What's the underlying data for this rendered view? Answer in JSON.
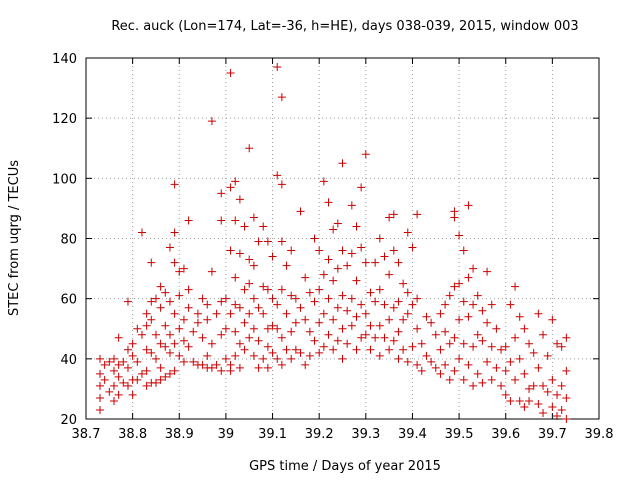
{
  "chart_data": {
    "type": "scatter",
    "title": "Rec. auck (Lon=174, Lat=-36, h=HE), days 038-039, 2015, window 003",
    "xlabel": "GPS time / Days of year 2015",
    "ylabel": "STEC from uqrg / TECUs",
    "xlim": [
      38.7,
      39.8
    ],
    "ylim": [
      20,
      140
    ],
    "xticks": [
      "38.7",
      "38.8",
      "38.9",
      "39",
      "39.1",
      "39.2",
      "39.3",
      "39.4",
      "39.5",
      "39.6",
      "39.7",
      "39.8"
    ],
    "yticks": [
      "20",
      "40",
      "60",
      "80",
      "100",
      "120",
      "140"
    ],
    "grid": true,
    "marker": "+",
    "color": "#cc0000",
    "points": [
      [
        38.73,
        40
      ],
      [
        38.73,
        35
      ],
      [
        38.73,
        31
      ],
      [
        38.73,
        27
      ],
      [
        38.73,
        23
      ],
      [
        38.74,
        38
      ],
      [
        38.74,
        33
      ],
      [
        38.75,
        39
      ],
      [
        38.75,
        29
      ],
      [
        38.76,
        40
      ],
      [
        38.76,
        36
      ],
      [
        38.76,
        31
      ],
      [
        38.76,
        26
      ],
      [
        38.77,
        47
      ],
      [
        38.77,
        38
      ],
      [
        38.77,
        34
      ],
      [
        38.77,
        28
      ],
      [
        38.78,
        39
      ],
      [
        38.78,
        32
      ],
      [
        38.79,
        59
      ],
      [
        38.79,
        43
      ],
      [
        38.79,
        37
      ],
      [
        38.79,
        31
      ],
      [
        38.8,
        45
      ],
      [
        38.8,
        41
      ],
      [
        38.8,
        33
      ],
      [
        38.8,
        28
      ],
      [
        38.81,
        50
      ],
      [
        38.81,
        39
      ],
      [
        38.81,
        33
      ],
      [
        38.82,
        48
      ],
      [
        38.82,
        35
      ],
      [
        38.82,
        82
      ],
      [
        38.83,
        55
      ],
      [
        38.83,
        51
      ],
      [
        38.83,
        43
      ],
      [
        38.83,
        36
      ],
      [
        38.83,
        31
      ],
      [
        38.84,
        72
      ],
      [
        38.84,
        59
      ],
      [
        38.84,
        53
      ],
      [
        38.84,
        42
      ],
      [
        38.84,
        32
      ],
      [
        38.85,
        60
      ],
      [
        38.85,
        48
      ],
      [
        38.85,
        40
      ],
      [
        38.85,
        32
      ],
      [
        38.86,
        64
      ],
      [
        38.86,
        57
      ],
      [
        38.86,
        45
      ],
      [
        38.86,
        37
      ],
      [
        38.86,
        33
      ],
      [
        38.87,
        62
      ],
      [
        38.87,
        51
      ],
      [
        38.87,
        44
      ],
      [
        38.87,
        34
      ],
      [
        38.88,
        77
      ],
      [
        38.88,
        59
      ],
      [
        38.88,
        48
      ],
      [
        38.88,
        42
      ],
      [
        38.88,
        35
      ],
      [
        38.89,
        98
      ],
      [
        38.89,
        82
      ],
      [
        38.89,
        72
      ],
      [
        38.89,
        55
      ],
      [
        38.89,
        45
      ],
      [
        38.89,
        36
      ],
      [
        38.9,
        69
      ],
      [
        38.9,
        61
      ],
      [
        38.9,
        50
      ],
      [
        38.9,
        41
      ],
      [
        38.91,
        70
      ],
      [
        38.91,
        53
      ],
      [
        38.91,
        46
      ],
      [
        38.91,
        39
      ],
      [
        38.92,
        86
      ],
      [
        38.92,
        63
      ],
      [
        38.92,
        57
      ],
      [
        38.92,
        44
      ],
      [
        38.93,
        49
      ],
      [
        38.93,
        39
      ],
      [
        38.94,
        55
      ],
      [
        38.94,
        52
      ],
      [
        38.94,
        38
      ],
      [
        38.95,
        60
      ],
      [
        38.95,
        47
      ],
      [
        38.95,
        38
      ],
      [
        38.96,
        58
      ],
      [
        38.96,
        53
      ],
      [
        38.96,
        41
      ],
      [
        38.96,
        37
      ],
      [
        38.97,
        119
      ],
      [
        38.97,
        69
      ],
      [
        38.97,
        45
      ],
      [
        38.97,
        37
      ],
      [
        38.98,
        55
      ],
      [
        38.98,
        38
      ],
      [
        38.99,
        95
      ],
      [
        38.99,
        86
      ],
      [
        38.99,
        59
      ],
      [
        38.99,
        48
      ],
      [
        38.99,
        36
      ],
      [
        39,
        60
      ],
      [
        39,
        50
      ],
      [
        39,
        40
      ],
      [
        39.01,
        135
      ],
      [
        39.01,
        97
      ],
      [
        39.01,
        76
      ],
      [
        39.01,
        55
      ],
      [
        39.01,
        38
      ],
      [
        39.01,
        36
      ],
      [
        39.02,
        99
      ],
      [
        39.02,
        86
      ],
      [
        39.02,
        67
      ],
      [
        39.02,
        58
      ],
      [
        39.02,
        49
      ],
      [
        39.02,
        41
      ],
      [
        39.03,
        93
      ],
      [
        39.03,
        75
      ],
      [
        39.03,
        57
      ],
      [
        39.03,
        45
      ],
      [
        39.03,
        37
      ],
      [
        39.04,
        84
      ],
      [
        39.04,
        63
      ],
      [
        39.04,
        52
      ],
      [
        39.04,
        43
      ],
      [
        39.05,
        110
      ],
      [
        39.05,
        73
      ],
      [
        39.05,
        65
      ],
      [
        39.05,
        55
      ],
      [
        39.05,
        47
      ],
      [
        39.06,
        87
      ],
      [
        39.06,
        71
      ],
      [
        39.06,
        60
      ],
      [
        39.06,
        50
      ],
      [
        39.06,
        41
      ],
      [
        39.07,
        79
      ],
      [
        39.07,
        57
      ],
      [
        39.07,
        46
      ],
      [
        39.07,
        37
      ],
      [
        39.08,
        84
      ],
      [
        39.08,
        64
      ],
      [
        39.08,
        55
      ],
      [
        39.08,
        40
      ],
      [
        39.09,
        79
      ],
      [
        39.09,
        63
      ],
      [
        39.09,
        50
      ],
      [
        39.09,
        44
      ],
      [
        39.09,
        37
      ],
      [
        39.1,
        74
      ],
      [
        39.1,
        60
      ],
      [
        39.1,
        51
      ],
      [
        39.1,
        42
      ],
      [
        39.11,
        137
      ],
      [
        39.11,
        101
      ],
      [
        39.11,
        58
      ],
      [
        39.11,
        50
      ],
      [
        39.11,
        40
      ],
      [
        39.12,
        127
      ],
      [
        39.12,
        98
      ],
      [
        39.12,
        79
      ],
      [
        39.12,
        63
      ],
      [
        39.12,
        47
      ],
      [
        39.12,
        38
      ],
      [
        39.13,
        71
      ],
      [
        39.13,
        55
      ],
      [
        39.13,
        43
      ],
      [
        39.14,
        76
      ],
      [
        39.14,
        61
      ],
      [
        39.14,
        49
      ],
      [
        39.14,
        40
      ],
      [
        39.15,
        60
      ],
      [
        39.15,
        52
      ],
      [
        39.15,
        43
      ],
      [
        39.16,
        89
      ],
      [
        39.16,
        57
      ],
      [
        39.16,
        42
      ],
      [
        39.17,
        67
      ],
      [
        39.17,
        53
      ],
      [
        39.17,
        38
      ],
      [
        39.18,
        62
      ],
      [
        39.18,
        49
      ],
      [
        39.18,
        41
      ],
      [
        39.19,
        80
      ],
      [
        39.19,
        59
      ],
      [
        39.19,
        46
      ],
      [
        39.2,
        76
      ],
      [
        39.2,
        63
      ],
      [
        39.2,
        52
      ],
      [
        39.2,
        42
      ],
      [
        39.21,
        99
      ],
      [
        39.21,
        68
      ],
      [
        39.21,
        55
      ],
      [
        39.21,
        44
      ],
      [
        39.22,
        92
      ],
      [
        39.22,
        73
      ],
      [
        39.22,
        60
      ],
      [
        39.22,
        48
      ],
      [
        39.23,
        83
      ],
      [
        39.23,
        66
      ],
      [
        39.23,
        53
      ],
      [
        39.23,
        43
      ],
      [
        39.24,
        85
      ],
      [
        39.24,
        70
      ],
      [
        39.24,
        57
      ],
      [
        39.24,
        46
      ],
      [
        39.25,
        105
      ],
      [
        39.25,
        76
      ],
      [
        39.25,
        61
      ],
      [
        39.25,
        50
      ],
      [
        39.25,
        40
      ],
      [
        39.26,
        71
      ],
      [
        39.26,
        56
      ],
      [
        39.26,
        45
      ],
      [
        39.27,
        91
      ],
      [
        39.27,
        75
      ],
      [
        39.27,
        60
      ],
      [
        39.27,
        51
      ],
      [
        39.28,
        84
      ],
      [
        39.28,
        66
      ],
      [
        39.28,
        54
      ],
      [
        39.28,
        43
      ],
      [
        39.29,
        97
      ],
      [
        39.29,
        77
      ],
      [
        39.29,
        58
      ],
      [
        39.29,
        47
      ],
      [
        39.3,
        108
      ],
      [
        39.3,
        72
      ],
      [
        39.3,
        55
      ],
      [
        39.3,
        48
      ],
      [
        39.31,
        62
      ],
      [
        39.31,
        51
      ],
      [
        39.31,
        43
      ],
      [
        39.32,
        72
      ],
      [
        39.32,
        59
      ],
      [
        39.32,
        47
      ],
      [
        39.33,
        80
      ],
      [
        39.33,
        63
      ],
      [
        39.33,
        51
      ],
      [
        39.33,
        41
      ],
      [
        39.34,
        74
      ],
      [
        39.34,
        58
      ],
      [
        39.34,
        47
      ],
      [
        39.35,
        87
      ],
      [
        39.35,
        68
      ],
      [
        39.35,
        53
      ],
      [
        39.35,
        43
      ],
      [
        39.36,
        88
      ],
      [
        39.36,
        76
      ],
      [
        39.36,
        57
      ],
      [
        39.36,
        46
      ],
      [
        39.37,
        72
      ],
      [
        39.37,
        59
      ],
      [
        39.37,
        49
      ],
      [
        39.37,
        40
      ],
      [
        39.38,
        65
      ],
      [
        39.38,
        53
      ],
      [
        39.38,
        43
      ],
      [
        39.39,
        82
      ],
      [
        39.39,
        62
      ],
      [
        39.39,
        55
      ],
      [
        39.39,
        39
      ],
      [
        39.4,
        77
      ],
      [
        39.4,
        58
      ],
      [
        39.4,
        44
      ],
      [
        39.41,
        88
      ],
      [
        39.41,
        60
      ],
      [
        39.41,
        50
      ],
      [
        39.41,
        38
      ],
      [
        39.42,
        45
      ],
      [
        39.42,
        36
      ],
      [
        39.43,
        54
      ],
      [
        39.43,
        41
      ],
      [
        39.44,
        52
      ],
      [
        39.44,
        39
      ],
      [
        39.45,
        48
      ],
      [
        39.45,
        37
      ],
      [
        39.46,
        55
      ],
      [
        39.46,
        43
      ],
      [
        39.46,
        35
      ],
      [
        39.47,
        58
      ],
      [
        39.47,
        49
      ],
      [
        39.47,
        38
      ],
      [
        39.48,
        61
      ],
      [
        39.48,
        45
      ],
      [
        39.48,
        33
      ],
      [
        39.49,
        89
      ],
      [
        39.49,
        87
      ],
      [
        39.49,
        64
      ],
      [
        39.49,
        47
      ],
      [
        39.49,
        36
      ],
      [
        39.5,
        81
      ],
      [
        39.5,
        65
      ],
      [
        39.5,
        53
      ],
      [
        39.5,
        40
      ],
      [
        39.51,
        76
      ],
      [
        39.51,
        59
      ],
      [
        39.51,
        45
      ],
      [
        39.51,
        33
      ],
      [
        39.52,
        91
      ],
      [
        39.52,
        67
      ],
      [
        39.52,
        54
      ],
      [
        39.52,
        38
      ],
      [
        39.53,
        70
      ],
      [
        39.53,
        58
      ],
      [
        39.53,
        44
      ],
      [
        39.53,
        31
      ],
      [
        39.54,
        61
      ],
      [
        39.54,
        48
      ],
      [
        39.54,
        35
      ],
      [
        39.55,
        56
      ],
      [
        39.55,
        46
      ],
      [
        39.55,
        32
      ],
      [
        39.56,
        69
      ],
      [
        39.56,
        52
      ],
      [
        39.56,
        39
      ],
      [
        39.57,
        58
      ],
      [
        39.57,
        44
      ],
      [
        39.57,
        33
      ],
      [
        39.58,
        50
      ],
      [
        39.58,
        37
      ],
      [
        39.59,
        43
      ],
      [
        39.59,
        31
      ],
      [
        39.6,
        44
      ],
      [
        39.6,
        36
      ],
      [
        39.6,
        28
      ],
      [
        39.61,
        58
      ],
      [
        39.61,
        39
      ],
      [
        39.61,
        26
      ],
      [
        39.62,
        64
      ],
      [
        39.62,
        47
      ],
      [
        39.62,
        33
      ],
      [
        39.63,
        54
      ],
      [
        39.63,
        40
      ],
      [
        39.63,
        26
      ],
      [
        39.64,
        50
      ],
      [
        39.64,
        35
      ],
      [
        39.64,
        24
      ],
      [
        39.65,
        45
      ],
      [
        39.65,
        30
      ],
      [
        39.65,
        26
      ],
      [
        39.66,
        42
      ],
      [
        39.66,
        31
      ],
      [
        39.67,
        55
      ],
      [
        39.67,
        37
      ],
      [
        39.67,
        25
      ],
      [
        39.68,
        48
      ],
      [
        39.68,
        31
      ],
      [
        39.68,
        22
      ],
      [
        39.69,
        41
      ],
      [
        39.69,
        29
      ],
      [
        39.7,
        53
      ],
      [
        39.7,
        33
      ],
      [
        39.7,
        24
      ],
      [
        39.71,
        45
      ],
      [
        39.71,
        28
      ],
      [
        39.71,
        21
      ],
      [
        39.72,
        44
      ],
      [
        39.72,
        31
      ],
      [
        39.72,
        23
      ],
      [
        39.73,
        47
      ],
      [
        39.73,
        36
      ],
      [
        39.73,
        27
      ],
      [
        39.73,
        20
      ]
    ]
  }
}
